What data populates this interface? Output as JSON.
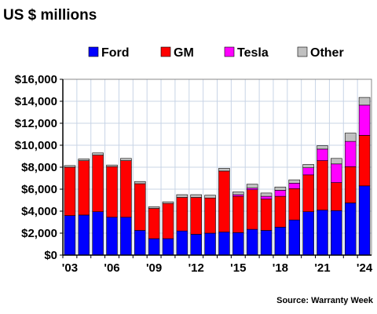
{
  "chart_data": {
    "type": "bar",
    "stacked": true,
    "title": "US $ millions",
    "source": "Source: Warranty Week",
    "categories": [
      "'03",
      "'04",
      "'05",
      "'06",
      "'07",
      "'08",
      "'09",
      "'10",
      "'11",
      "'12",
      "'13",
      "'14",
      "'15",
      "'16",
      "'17",
      "'18",
      "'19",
      "'20",
      "'21",
      "'22",
      "'23",
      "'24"
    ],
    "xtick_labels": [
      "'03",
      "'06",
      "'09",
      "'12",
      "'15",
      "'18",
      "'21",
      "'24"
    ],
    "ylim": [
      0,
      16000
    ],
    "ytick_values": [
      0,
      2000,
      4000,
      6000,
      8000,
      10000,
      12000,
      14000,
      16000
    ],
    "ytick_labels": [
      "$0",
      "$2,000",
      "$4,000",
      "$6,000",
      "$8,000",
      "$10,000",
      "$12,000",
      "$14,000",
      "$16,000"
    ],
    "grid": true,
    "legend_position": "top",
    "series": [
      {
        "name": "Ford",
        "color": "#0000ff",
        "values": [
          3600,
          3650,
          3950,
          3450,
          3450,
          2250,
          1500,
          1500,
          2200,
          1900,
          2000,
          2100,
          2050,
          2350,
          2250,
          2550,
          3200,
          3950,
          4100,
          4050,
          4750,
          6300
        ]
      },
      {
        "name": "GM",
        "color": "#ff0000",
        "values": [
          4400,
          4950,
          5150,
          4600,
          5150,
          4250,
          2750,
          3200,
          3050,
          3350,
          3200,
          5550,
          3300,
          3600,
          2850,
          2800,
          2850,
          3350,
          4500,
          2550,
          3300,
          4600
        ]
      },
      {
        "name": "Tesla",
        "color": "#ff00ff",
        "values": [
          0,
          0,
          0,
          0,
          0,
          0,
          0,
          0,
          0,
          0,
          0,
          0,
          150,
          150,
          250,
          550,
          500,
          650,
          1050,
          1700,
          2300,
          2750
        ]
      },
      {
        "name": "Other",
        "color": "#c0c0c0",
        "values": [
          150,
          150,
          200,
          150,
          200,
          200,
          150,
          150,
          250,
          250,
          250,
          250,
          250,
          350,
          300,
          300,
          300,
          300,
          300,
          500,
          750,
          700
        ]
      }
    ]
  }
}
